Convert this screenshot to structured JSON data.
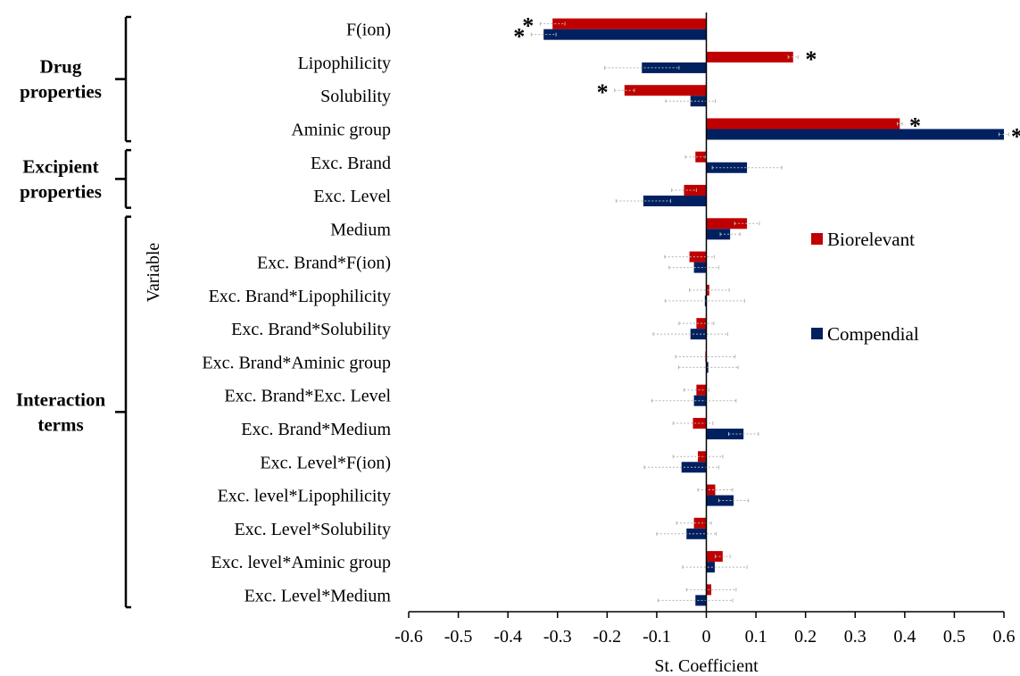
{
  "chart_data": {
    "type": "bar",
    "orientation": "horizontal",
    "title": "",
    "xlabel": "St. Coefficient",
    "ylabel": "Variable",
    "xlim": [
      -0.6,
      0.6
    ],
    "xticks": [
      "-0.6",
      "-0.5",
      "-0.4",
      "-0.3",
      "-0.2",
      "-0.1",
      "0",
      "0.1",
      "0.2",
      "0.3",
      "0.4",
      "0.5",
      "0.6"
    ],
    "categories": [
      "F(ion)",
      "Lipophilicity",
      "Solubility",
      "Aminic group",
      "Exc. Brand",
      "Exc. Level",
      "Medium",
      "Exc. Brand*F(ion)",
      "Exc. Brand*Lipophilicity",
      "Exc. Brand*Solubility",
      "Exc. Brand*Aminic group",
      "Exc. Brand*Exc. Level",
      "Exc. Brand*Medium",
      "Exc. Level*F(ion)",
      "Exc. level*Lipophilicity",
      "Exc. Level*Solubility",
      "Exc. level*Aminic group",
      "Exc. Level*Medium"
    ],
    "series": [
      {
        "name": "Biorelevant",
        "color": "#c00000",
        "values": [
          -0.31,
          0.175,
          -0.165,
          0.39,
          -0.022,
          -0.045,
          0.082,
          -0.034,
          0.006,
          -0.02,
          -0.002,
          -0.02,
          -0.027,
          -0.017,
          0.018,
          -0.025,
          0.033,
          0.01
        ],
        "errors": [
          0.025,
          0.01,
          0.02,
          0.005,
          0.02,
          0.025,
          0.025,
          0.05,
          0.04,
          0.035,
          0.06,
          0.025,
          0.04,
          0.05,
          0.035,
          0.035,
          0.015,
          0.05
        ],
        "significant": [
          true,
          true,
          true,
          true,
          false,
          false,
          false,
          false,
          false,
          false,
          false,
          false,
          false,
          false,
          false,
          false,
          false,
          false
        ]
      },
      {
        "name": "Compendial",
        "color": "#002060",
        "values": [
          -0.328,
          -0.13,
          -0.032,
          0.6,
          0.082,
          -0.127,
          0.048,
          -0.025,
          -0.003,
          -0.032,
          0.004,
          -0.025,
          0.075,
          -0.05,
          0.055,
          -0.04,
          0.017,
          -0.022
        ],
        "errors": [
          0.025,
          0.075,
          0.05,
          0.01,
          0.07,
          0.055,
          0.02,
          0.05,
          0.08,
          0.075,
          0.06,
          0.085,
          0.03,
          0.075,
          0.03,
          0.06,
          0.065,
          0.075
        ],
        "significant": [
          true,
          false,
          false,
          true,
          false,
          false,
          false,
          false,
          false,
          false,
          false,
          false,
          false,
          false,
          false,
          false,
          false,
          false
        ]
      }
    ],
    "groups": [
      {
        "label_lines": [
          "Drug",
          "properties"
        ],
        "from": 0,
        "to": 3
      },
      {
        "label_lines": [
          "Excipient",
          "properties"
        ],
        "from": 4,
        "to": 5
      },
      {
        "label_lines": [
          "Interaction",
          "terms"
        ],
        "from": 6,
        "to": 17
      }
    ],
    "significance_marker": "*",
    "legend": {
      "placement": "right",
      "entries": [
        "Biorelevant",
        "Compendial"
      ]
    },
    "grid": false
  }
}
